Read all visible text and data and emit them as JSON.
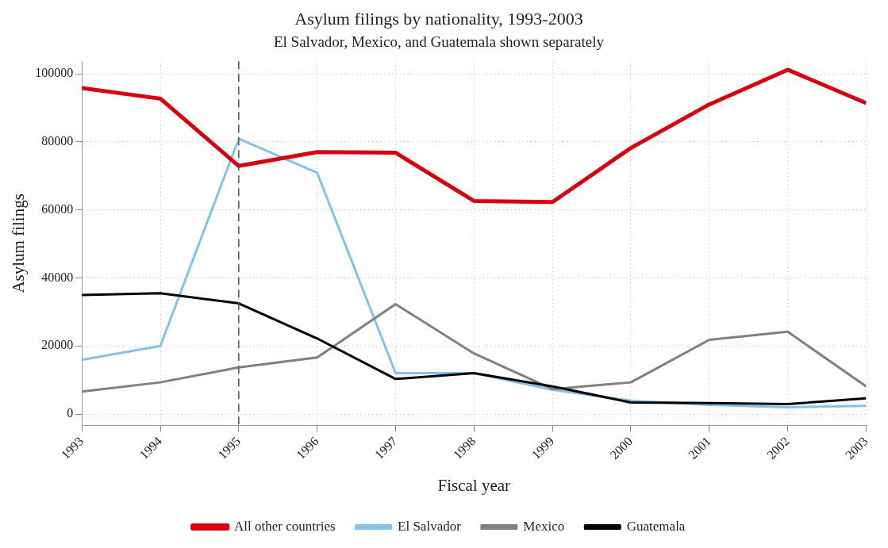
{
  "chart_data": {
    "type": "line",
    "title": "Asylum filings by nationality, 1993-2003",
    "subtitle": "El Salvador, Mexico, and Guatemala shown separately",
    "xlabel": "Fiscal year",
    "ylabel": "Asylum filings",
    "x": [
      1993,
      1994,
      1995,
      1996,
      1997,
      1998,
      1999,
      2000,
      2001,
      2002,
      2003
    ],
    "series": [
      {
        "name": "All other countries",
        "color": "#d7000f",
        "values": [
          95800,
          92700,
          72900,
          77000,
          76800,
          62600,
          62300,
          78200,
          91000,
          101200,
          91400
        ]
      },
      {
        "name": "El Salvador",
        "color": "#85c1e9",
        "values": [
          15900,
          20000,
          80900,
          70900,
          12000,
          12000,
          7100,
          3900,
          2700,
          2000,
          2400
        ]
      },
      {
        "name": "Mexico",
        "color": "#808080",
        "values": [
          6600,
          9300,
          13700,
          16600,
          32300,
          17800,
          7300,
          9300,
          21800,
          24200,
          8100
        ]
      },
      {
        "name": "Guatemala",
        "color": "#000000",
        "values": [
          35000,
          35500,
          32500,
          22200,
          10300,
          12000,
          8100,
          3400,
          3200,
          2900,
          4600
        ]
      }
    ],
    "xlim": [
      1993,
      2003
    ],
    "xticks": [
      1993,
      1994,
      1995,
      1996,
      1997,
      1998,
      1999,
      2000,
      2001,
      2002,
      2003
    ],
    "ylim": [
      -3400,
      103700
    ],
    "yticks": [
      0,
      20000,
      40000,
      60000,
      80000,
      100000
    ],
    "ref_lines": [
      {
        "axis": "x",
        "value": 1995,
        "color": "#555555",
        "line_style": "dashed"
      }
    ],
    "grid": true,
    "legend": "bottom",
    "marker": "none",
    "line_style": "solid"
  }
}
